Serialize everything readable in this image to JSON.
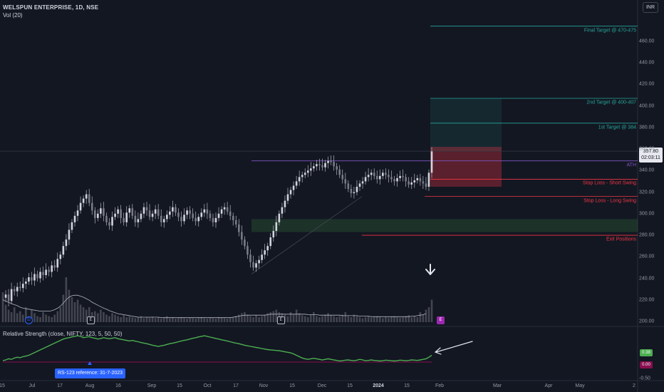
{
  "header": {
    "symbol_line": "WELSPUN ENTERPRISE, 1D, NSE",
    "volume_line": "Vol (20)",
    "currency": "INR"
  },
  "chart_data": {
    "type": "candlestick",
    "symbol": "WELSPUN ENTERPRISE",
    "interval": "1D",
    "exchange": "NSE",
    "y_ticks": [
      200,
      220,
      240,
      260,
      280,
      300,
      320,
      340,
      360,
      380,
      400,
      420,
      440,
      460
    ],
    "ylim": [
      195,
      480
    ],
    "x_ticks": [
      "15",
      "Jul",
      "17",
      "Aug",
      "16",
      "Sep",
      "15",
      "Oct",
      "17",
      "Nov",
      "15",
      "Dec",
      "15",
      "2024",
      "15",
      "Feb",
      "Mar",
      "Apr",
      "May",
      "2"
    ],
    "last_price": "357.80",
    "countdown": "02:03:11",
    "close_series": [
      222,
      225,
      219,
      230,
      228,
      232,
      231,
      235,
      237,
      241,
      238,
      244,
      240,
      246,
      243,
      248,
      246,
      252,
      250,
      258,
      262,
      270,
      276,
      285,
      292,
      298,
      303,
      310,
      314,
      318,
      310,
      303,
      296,
      300,
      305,
      298,
      292,
      289,
      297,
      300,
      304,
      296,
      292,
      301,
      305,
      298,
      292,
      295,
      300,
      306,
      303,
      297,
      300,
      304,
      298,
      292,
      295,
      299,
      302,
      306,
      301,
      297,
      293,
      299,
      303,
      300,
      296,
      293,
      297,
      301,
      304,
      300,
      296,
      292,
      296,
      300,
      304,
      306,
      302,
      298,
      294,
      290,
      283,
      276,
      270,
      262,
      255,
      250,
      254,
      257,
      262,
      266,
      270,
      278,
      284,
      292,
      300,
      306,
      312,
      318,
      322,
      326,
      330,
      334,
      336,
      338,
      340,
      342,
      344,
      346,
      345,
      343,
      347,
      349,
      348,
      344,
      341,
      336,
      332,
      328,
      323,
      319,
      320,
      325,
      328,
      330,
      334,
      336,
      338,
      335,
      332,
      335,
      338,
      336,
      334,
      332,
      330,
      333,
      335,
      334,
      330,
      327,
      329,
      331,
      333,
      330,
      328,
      325,
      338,
      357.8
    ],
    "volume_series": [
      0.6,
      0.35,
      0.25,
      0.2,
      0.3,
      0.18,
      0.22,
      0.15,
      0.3,
      0.12,
      0.25,
      0.18,
      0.12,
      0.1,
      0.2,
      0.15,
      0.12,
      0.1,
      0.15,
      0.22,
      0.3,
      0.55,
      0.9,
      0.65,
      0.5,
      0.4,
      0.45,
      0.35,
      0.3,
      0.25,
      0.3,
      0.2,
      0.22,
      0.18,
      0.25,
      0.2,
      0.15,
      0.12,
      0.18,
      0.15,
      0.12,
      0.1,
      0.14,
      0.1,
      0.12,
      0.1,
      0.08,
      0.1,
      0.12,
      0.08,
      0.1,
      0.09,
      0.11,
      0.08,
      0.1,
      0.07,
      0.09,
      0.12,
      0.08,
      0.1,
      0.07,
      0.09,
      0.1,
      0.08,
      0.07,
      0.09,
      0.08,
      0.07,
      0.09,
      0.1,
      0.08,
      0.07,
      0.09,
      0.08,
      0.07,
      0.1,
      0.09,
      0.08,
      0.07,
      0.09,
      0.1,
      0.12,
      0.15,
      0.18,
      0.2,
      0.15,
      0.12,
      0.1,
      0.14,
      0.1,
      0.12,
      0.15,
      0.18,
      0.2,
      0.22,
      0.25,
      0.2,
      0.18,
      0.15,
      0.12,
      0.2,
      0.15,
      0.25,
      0.18,
      0.14,
      0.12,
      0.1,
      0.15,
      0.2,
      0.12,
      0.1,
      0.12,
      0.15,
      0.18,
      0.14,
      0.12,
      0.1,
      0.12,
      0.15,
      0.2,
      0.12,
      0.1,
      0.15,
      0.12,
      0.1,
      0.08,
      0.1,
      0.12,
      0.09,
      0.1,
      0.12,
      0.1,
      0.08,
      0.1,
      0.09,
      0.11,
      0.12,
      0.1,
      0.09,
      0.1,
      0.12,
      0.14,
      0.1,
      0.12,
      0.1,
      0.2,
      0.15,
      0.25,
      0.3,
      0.45
    ],
    "volume_ma": [
      0.45,
      0.42,
      0.4,
      0.37,
      0.35,
      0.33,
      0.3,
      0.28,
      0.27,
      0.26,
      0.25,
      0.24,
      0.23,
      0.22,
      0.22,
      0.22,
      0.22,
      0.23,
      0.25,
      0.28,
      0.32,
      0.38,
      0.45,
      0.5,
      0.53,
      0.54,
      0.54,
      0.52,
      0.5,
      0.47,
      0.44,
      0.4,
      0.37,
      0.34,
      0.31,
      0.28,
      0.26,
      0.23,
      0.21,
      0.19,
      0.17,
      0.16,
      0.15,
      0.14,
      0.13,
      0.12,
      0.11,
      0.1,
      0.1,
      0.1,
      0.1,
      0.1,
      0.1,
      0.1,
      0.1,
      0.09,
      0.09,
      0.09,
      0.09,
      0.09,
      0.09,
      0.09,
      0.09,
      0.09,
      0.09,
      0.09,
      0.09,
      0.09,
      0.09,
      0.09,
      0.09,
      0.09,
      0.09,
      0.09,
      0.09,
      0.09,
      0.09,
      0.09,
      0.09,
      0.09,
      0.1,
      0.11,
      0.12,
      0.13,
      0.14,
      0.14,
      0.14,
      0.14,
      0.14,
      0.14,
      0.14,
      0.14,
      0.15,
      0.16,
      0.16,
      0.16,
      0.16,
      0.16,
      0.16,
      0.16,
      0.16,
      0.16,
      0.16,
      0.16,
      0.16,
      0.16,
      0.15,
      0.15,
      0.15,
      0.15,
      0.14,
      0.14,
      0.14,
      0.14,
      0.14,
      0.14,
      0.14,
      0.14,
      0.13,
      0.13,
      0.13,
      0.13,
      0.13,
      0.13,
      0.12,
      0.12,
      0.12,
      0.12,
      0.11,
      0.11,
      0.11,
      0.11,
      0.11,
      0.11,
      0.11,
      0.11,
      0.11,
      0.11,
      0.11,
      0.11,
      0.11,
      0.11,
      0.12,
      0.12,
      0.13,
      0.14,
      0.15,
      0.17
    ],
    "rs_series": [
      0.05,
      0.08,
      0.12,
      0.1,
      0.15,
      0.18,
      0.16,
      0.2,
      0.22,
      0.25,
      0.3,
      0.35,
      0.4,
      0.45,
      0.5,
      0.55,
      0.6,
      0.65,
      0.7,
      0.75,
      0.8,
      0.85,
      0.88,
      0.9,
      0.93,
      0.95,
      0.97,
      0.95,
      0.9,
      0.92,
      0.94,
      0.9,
      0.88,
      0.85,
      0.87,
      0.9,
      0.88,
      0.86,
      0.88,
      0.9,
      0.86,
      0.84,
      0.82,
      0.8,
      0.78,
      0.8,
      0.77,
      0.75,
      0.72,
      0.7,
      0.68,
      0.65,
      0.62,
      0.6,
      0.58,
      0.6,
      0.62,
      0.65,
      0.68,
      0.7,
      0.72,
      0.75,
      0.78,
      0.8,
      0.82,
      0.85,
      0.88,
      0.9,
      0.93,
      0.95,
      0.97,
      0.95,
      0.92,
      0.9,
      0.87,
      0.85,
      0.82,
      0.8,
      0.78,
      0.75,
      0.72,
      0.7,
      0.68,
      0.65,
      0.62,
      0.6,
      0.58,
      0.56,
      0.54,
      0.52,
      0.5,
      0.48,
      0.46,
      0.45,
      0.44,
      0.43,
      0.42,
      0.4,
      0.38,
      0.36,
      0.34,
      0.3,
      0.25,
      0.2,
      0.15,
      0.12,
      0.1,
      0.12,
      0.14,
      0.12,
      0.1,
      0.08,
      0.1,
      0.12,
      0.1,
      0.08,
      0.06,
      0.04,
      0.05,
      0.07,
      0.08,
      0.06,
      0.05,
      0.07,
      0.1,
      0.08,
      0.05,
      0.06,
      0.08,
      0.06,
      0.05,
      0.04,
      0.05,
      0.07,
      0.06,
      0.05,
      0.04,
      0.05,
      0.07,
      0.06,
      0.05,
      0.06,
      0.08,
      0.07,
      0.06,
      0.08,
      0.1,
      0.12,
      0.18,
      0.25
    ],
    "rs_tags": [
      "0.38",
      "0.00"
    ],
    "rs_ticks": [
      "-0.50"
    ],
    "levels": [
      {
        "label": "Final Target @ 470-475",
        "price": 474,
        "color": "#26a69a"
      },
      {
        "label": "2nd Target @ 400-407",
        "price": 407,
        "color": "#26a69a"
      },
      {
        "label": "1st Target @ 384",
        "price": 384,
        "color": "#26a69a"
      },
      {
        "label": "ATH",
        "price": 349,
        "color": "#7e57c2"
      },
      {
        "label": "Stop Loss - Short Swing",
        "price": 332,
        "color": "#f23645"
      },
      {
        "label": "Stop Loss - Long Swing",
        "price": 316,
        "color": "#f23645"
      },
      {
        "label": "Exit Positions",
        "price": 280,
        "color": "#f23645"
      }
    ],
    "demand_zone": [
      283,
      295
    ],
    "reward_box": [
      357.8,
      407
    ],
    "risk_box": [
      325,
      362
    ]
  },
  "indicator": {
    "rs_label": "Relative Strength (close, NIFTY, 123, 5, 50, 50)",
    "reference_tag": "RS-123 reference: 31-7-2023"
  },
  "markers": {
    "dividend": "D",
    "earnings": "E"
  },
  "colors": {
    "background": "#131722",
    "candle": "#b2b5be",
    "target_line": "#26a69a",
    "stop_line": "#f23645",
    "ath_line": "#7e57c2",
    "rs_line": "#4caf50",
    "reference_tag": "#2962ff"
  }
}
